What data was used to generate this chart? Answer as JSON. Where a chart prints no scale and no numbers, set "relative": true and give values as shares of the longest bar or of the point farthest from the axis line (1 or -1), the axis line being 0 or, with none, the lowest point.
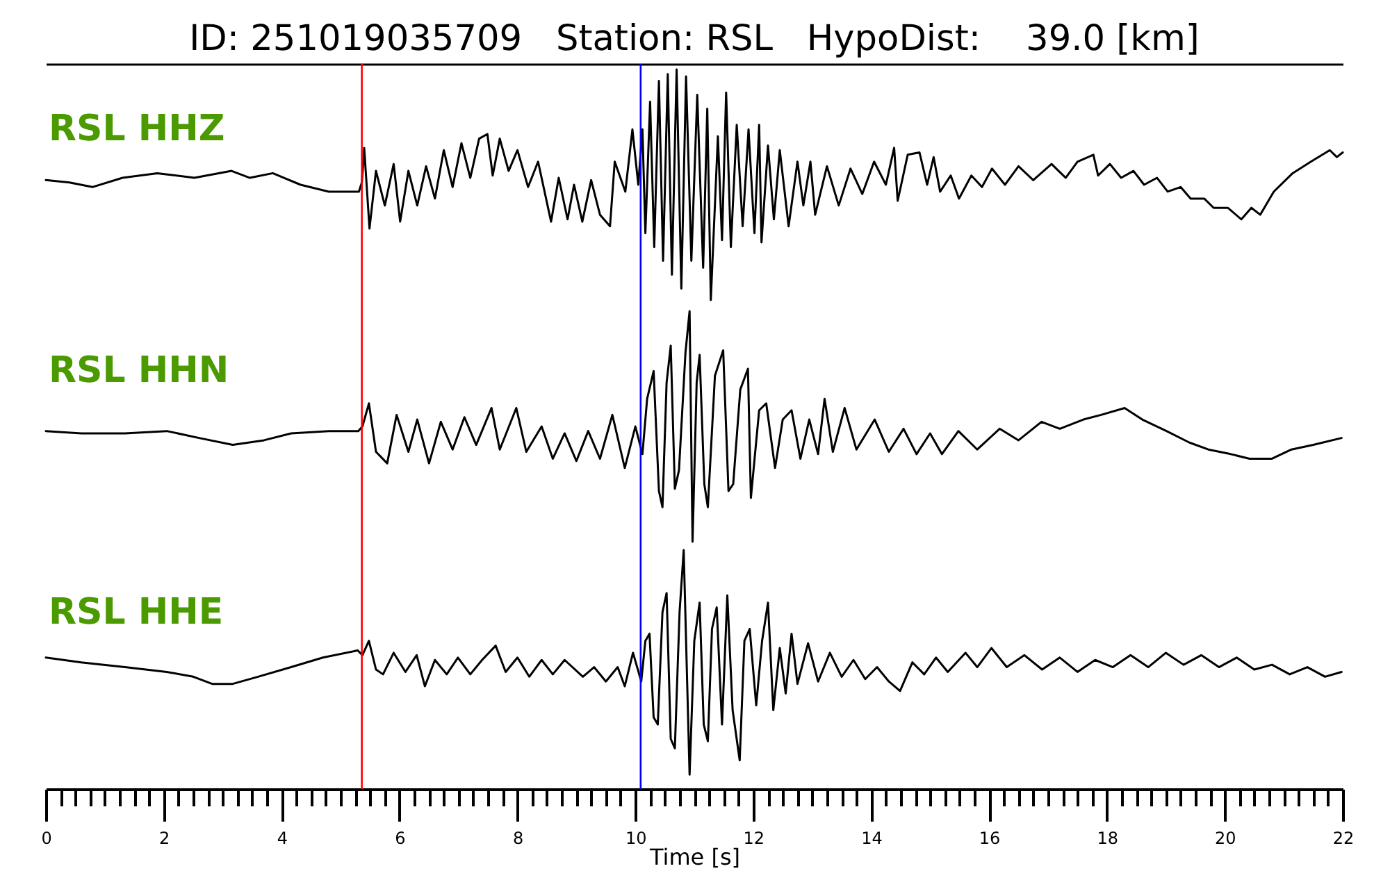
{
  "chart_data": [
    {
      "type": "line",
      "title": "ID: 251019035709   Station: RSL   HypoDist:    39.0 [km]",
      "relative": true,
      "xlim": [
        0,
        22
      ],
      "tick_labels": false,
      "ref_lines": [
        {
          "axis": "x",
          "value": 5.36,
          "color": "#ff0000"
        },
        {
          "axis": "x",
          "value": 10.09,
          "color": "#0000ff"
        }
      ],
      "series": [
        {
          "name": "RSL HHZ",
          "color": "#000000",
          "x": [
            0,
            0.4,
            0.79,
            1.3,
            1.89,
            2.52,
            3.15,
            3.46,
            3.85,
            4.32,
            4.8,
            5.31,
            5.36,
            5.4,
            5.49,
            5.6,
            5.75,
            5.9,
            6.01,
            6.15,
            6.3,
            6.45,
            6.6,
            6.75,
            6.9,
            7.05,
            7.2,
            7.35,
            7.49,
            7.58,
            7.7,
            7.85,
            8,
            8.18,
            8.35,
            8.57,
            8.7,
            8.85,
            8.96,
            9.1,
            9.25,
            9.4,
            9.57,
            9.65,
            9.83,
            9.95,
            10.05,
            10.12,
            10.17,
            10.25,
            10.32,
            10.4,
            10.47,
            10.55,
            10.62,
            10.7,
            10.78,
            10.86,
            10.95,
            11.05,
            11.15,
            11.22,
            11.28,
            11.4,
            11.47,
            11.54,
            11.62,
            11.72,
            11.82,
            11.92,
            12.02,
            12.1,
            12.14,
            12.25,
            12.35,
            12.45,
            12.6,
            12.75,
            12.85,
            12.97,
            13.05,
            13.25,
            13.45,
            13.65,
            13.85,
            14.05,
            14.25,
            14.39,
            14.45,
            14.62,
            14.82,
            14.95,
            15.06,
            15.17,
            15.35,
            15.49,
            15.7,
            15.88,
            16.05,
            16.27,
            16.5,
            16.75,
            17.06,
            17.3,
            17.5,
            17.77,
            17.85,
            18.05,
            18.24,
            18.45,
            18.63,
            18.85,
            19.03,
            19.25,
            19.42,
            19.65,
            19.81,
            20.05,
            20.28,
            20.45,
            20.6,
            20.83,
            21.15,
            21.46,
            21.78,
            21.9,
            22
          ],
          "values": [
            0.52,
            0.51,
            0.49,
            0.53,
            0.55,
            0.53,
            0.56,
            0.53,
            0.55,
            0.5,
            0.47,
            0.47,
            0.51,
            0.66,
            0.31,
            0.56,
            0.41,
            0.59,
            0.34,
            0.56,
            0.41,
            0.58,
            0.44,
            0.65,
            0.49,
            0.68,
            0.53,
            0.7,
            0.72,
            0.54,
            0.7,
            0.56,
            0.65,
            0.49,
            0.6,
            0.34,
            0.53,
            0.35,
            0.5,
            0.34,
            0.52,
            0.37,
            0.32,
            0.6,
            0.47,
            0.74,
            0.5,
            0.74,
            0.29,
            0.86,
            0.23,
            0.95,
            0.17,
            0.98,
            0.11,
            1,
            0.05,
            0.97,
            0.17,
            0.89,
            0.14,
            0.83,
            0,
            0.71,
            0.26,
            0.9,
            0.23,
            0.76,
            0.32,
            0.74,
            0.29,
            0.76,
            0.25,
            0.67,
            0.35,
            0.65,
            0.32,
            0.6,
            0.41,
            0.6,
            0.37,
            0.58,
            0.41,
            0.57,
            0.46,
            0.6,
            0.5,
            0.66,
            0.43,
            0.63,
            0.64,
            0.5,
            0.62,
            0.47,
            0.54,
            0.44,
            0.54,
            0.49,
            0.57,
            0.5,
            0.58,
            0.52,
            0.59,
            0.53,
            0.6,
            0.63,
            0.54,
            0.59,
            0.53,
            0.56,
            0.5,
            0.53,
            0.47,
            0.49,
            0.44,
            0.44,
            0.4,
            0.4,
            0.35,
            0.4,
            0.37,
            0.47,
            0.55,
            0.6,
            0.65,
            0.62,
            0.64
          ]
        }
      ]
    },
    {
      "type": "line",
      "relative": true,
      "xlim": [
        0,
        22
      ],
      "tick_labels": false,
      "ref_lines": [
        {
          "axis": "x",
          "value": 5.36,
          "color": "#ff0000"
        },
        {
          "axis": "x",
          "value": 10.09,
          "color": "#0000ff"
        }
      ],
      "series": [
        {
          "name": "RSL HHN",
          "color": "#000000",
          "x": [
            0,
            0.6,
            1.34,
            2.05,
            2.6,
            3.17,
            3.7,
            4.16,
            4.8,
            5.3,
            5.37,
            5.48,
            5.6,
            5.79,
            5.95,
            6.15,
            6.3,
            6.5,
            6.7,
            6.9,
            7.1,
            7.3,
            7.56,
            7.7,
            7.98,
            8.15,
            8.41,
            8.6,
            8.8,
            9,
            9.2,
            9.4,
            9.61,
            9.82,
            10,
            10.12,
            10.2,
            10.31,
            10.4,
            10.46,
            10.53,
            10.6,
            10.67,
            10.74,
            10.85,
            10.92,
            10.97,
            11.04,
            11.09,
            11.17,
            11.23,
            11.35,
            11.49,
            11.58,
            11.66,
            11.78,
            11.91,
            11.96,
            12.1,
            12.22,
            12.37,
            12.5,
            12.65,
            12.8,
            12.95,
            13.1,
            13.21,
            13.35,
            13.55,
            13.75,
            14.06,
            14.3,
            14.55,
            14.77,
            15,
            15.2,
            15.48,
            15.8,
            16.18,
            16.5,
            16.89,
            17.2,
            17.6,
            17.9,
            18.3,
            18.6,
            19.01,
            19.4,
            19.72,
            20.1,
            20.42,
            20.8,
            21.13,
            21.5,
            21.98
          ],
          "values": [
            0.48,
            0.47,
            0.47,
            0.48,
            0.45,
            0.42,
            0.44,
            0.47,
            0.48,
            0.48,
            0.5,
            0.6,
            0.39,
            0.34,
            0.55,
            0.39,
            0.53,
            0.34,
            0.52,
            0.4,
            0.54,
            0.42,
            0.58,
            0.4,
            0.58,
            0.39,
            0.5,
            0.36,
            0.47,
            0.35,
            0.48,
            0.36,
            0.55,
            0.32,
            0.5,
            0.38,
            0.62,
            0.74,
            0.22,
            0.15,
            0.69,
            0.85,
            0.23,
            0.31,
            0.82,
            1,
            0,
            0.69,
            0.81,
            0.25,
            0.15,
            0.72,
            0.83,
            0.22,
            0.25,
            0.66,
            0.75,
            0.19,
            0.57,
            0.6,
            0.32,
            0.53,
            0.57,
            0.36,
            0.53,
            0.38,
            0.62,
            0.39,
            0.58,
            0.4,
            0.53,
            0.39,
            0.49,
            0.38,
            0.47,
            0.38,
            0.48,
            0.4,
            0.49,
            0.44,
            0.52,
            0.49,
            0.53,
            0.55,
            0.58,
            0.53,
            0.48,
            0.43,
            0.4,
            0.38,
            0.36,
            0.36,
            0.4,
            0.42,
            0.45
          ]
        }
      ]
    },
    {
      "type": "line",
      "relative": true,
      "xlim": [
        0,
        22
      ],
      "tick_labels": "x",
      "xlabel": "Time [s]",
      "xticks": [
        0,
        {
          "value": 0.25,
          "label": null
        },
        {
          "value": 0.5,
          "label": null
        },
        {
          "value": 0.75,
          "label": null
        },
        {
          "value": 1,
          "label": null
        },
        {
          "value": 1.25,
          "label": null
        },
        {
          "value": 1.5,
          "label": null
        },
        {
          "value": 1.75,
          "label": null
        },
        2,
        {
          "value": 2.25,
          "label": null
        },
        {
          "value": 2.5,
          "label": null
        },
        {
          "value": 2.75,
          "label": null
        },
        {
          "value": 3,
          "label": null
        },
        {
          "value": 3.25,
          "label": null
        },
        {
          "value": 3.5,
          "label": null
        },
        {
          "value": 3.75,
          "label": null
        },
        4,
        {
          "value": 4.25,
          "label": null
        },
        {
          "value": 4.5,
          "label": null
        },
        {
          "value": 4.75,
          "label": null
        },
        {
          "value": 5,
          "label": null
        },
        {
          "value": 5.25,
          "label": null
        },
        {
          "value": 5.5,
          "label": null
        },
        {
          "value": 5.75,
          "label": null
        },
        6,
        {
          "value": 6.25,
          "label": null
        },
        {
          "value": 6.5,
          "label": null
        },
        {
          "value": 6.75,
          "label": null
        },
        {
          "value": 7,
          "label": null
        },
        {
          "value": 7.25,
          "label": null
        },
        {
          "value": 7.5,
          "label": null
        },
        {
          "value": 7.75,
          "label": null
        },
        8,
        {
          "value": 8.25,
          "label": null
        },
        {
          "value": 8.5,
          "label": null
        },
        {
          "value": 8.75,
          "label": null
        },
        {
          "value": 9,
          "label": null
        },
        {
          "value": 9.25,
          "label": null
        },
        {
          "value": 9.5,
          "label": null
        },
        {
          "value": 9.75,
          "label": null
        },
        10,
        {
          "value": 10.25,
          "label": null
        },
        {
          "value": 10.5,
          "label": null
        },
        {
          "value": 10.75,
          "label": null
        },
        {
          "value": 11,
          "label": null
        },
        {
          "value": 11.25,
          "label": null
        },
        {
          "value": 11.5,
          "label": null
        },
        {
          "value": 11.75,
          "label": null
        },
        12,
        {
          "value": 12.25,
          "label": null
        },
        {
          "value": 12.5,
          "label": null
        },
        {
          "value": 12.75,
          "label": null
        },
        {
          "value": 13,
          "label": null
        },
        {
          "value": 13.25,
          "label": null
        },
        {
          "value": 13.5,
          "label": null
        },
        {
          "value": 13.75,
          "label": null
        },
        14,
        {
          "value": 14.25,
          "label": null
        },
        {
          "value": 14.5,
          "label": null
        },
        {
          "value": 14.75,
          "label": null
        },
        {
          "value": 15,
          "label": null
        },
        {
          "value": 15.25,
          "label": null
        },
        {
          "value": 15.5,
          "label": null
        },
        {
          "value": 15.75,
          "label": null
        },
        16,
        {
          "value": 16.25,
          "label": null
        },
        {
          "value": 16.5,
          "label": null
        },
        {
          "value": 16.75,
          "label": null
        },
        {
          "value": 17,
          "label": null
        },
        {
          "value": 17.25,
          "label": null
        },
        {
          "value": 17.5,
          "label": null
        },
        {
          "value": 17.75,
          "label": null
        },
        18,
        {
          "value": 18.25,
          "label": null
        },
        {
          "value": 18.5,
          "label": null
        },
        {
          "value": 18.75,
          "label": null
        },
        {
          "value": 19,
          "label": null
        },
        {
          "value": 19.25,
          "label": null
        },
        {
          "value": 19.5,
          "label": null
        },
        {
          "value": 19.75,
          "label": null
        },
        20,
        {
          "value": 20.25,
          "label": null
        },
        {
          "value": 20.5,
          "label": null
        },
        {
          "value": 20.75,
          "label": null
        },
        {
          "value": 21,
          "label": null
        },
        {
          "value": 21.25,
          "label": null
        },
        {
          "value": 21.5,
          "label": null
        },
        {
          "value": 21.75,
          "label": null
        },
        22
      ],
      "ref_lines": [
        {
          "axis": "x",
          "value": 5.36,
          "color": "#ff0000"
        },
        {
          "axis": "x",
          "value": 10.09,
          "color": "#0000ff"
        }
      ],
      "series": [
        {
          "name": "RSL HHE",
          "color": "#000000",
          "x": [
            0,
            0.6,
            1.34,
            2.05,
            2.5,
            2.82,
            3.17,
            3.6,
            4.16,
            4.7,
            5.29,
            5.37,
            5.48,
            5.6,
            5.72,
            5.9,
            6.1,
            6.29,
            6.43,
            6.6,
            6.8,
            6.99,
            7.2,
            7.4,
            7.63,
            7.8,
            8,
            8.2,
            8.41,
            8.6,
            8.8,
            9.11,
            9.3,
            9.5,
            9.7,
            9.82,
            9.96,
            10.1,
            10.17,
            10.24,
            10.31,
            10.38,
            10.46,
            10.53,
            10.6,
            10.67,
            10.75,
            10.82,
            10.92,
            11,
            11.09,
            11.16,
            11.23,
            11.3,
            11.38,
            11.47,
            11.56,
            11.65,
            11.77,
            11.85,
            11.94,
            12.05,
            12.15,
            12.25,
            12.34,
            12.45,
            12.55,
            12.65,
            12.75,
            12.93,
            13.1,
            13.3,
            13.5,
            13.7,
            13.9,
            14.1,
            14.3,
            14.49,
            14.7,
            14.9,
            15.1,
            15.3,
            15.6,
            15.8,
            16.04,
            16.3,
            16.6,
            16.9,
            17.2,
            17.5,
            17.8,
            18.1,
            18.4,
            18.7,
            19,
            19.3,
            19.6,
            19.9,
            20.2,
            20.5,
            20.8,
            21.1,
            21.4,
            21.7,
            21.98
          ],
          "values": [
            0.55,
            0.53,
            0.51,
            0.49,
            0.47,
            0.44,
            0.44,
            0.47,
            0.51,
            0.55,
            0.58,
            0.56,
            0.62,
            0.5,
            0.48,
            0.57,
            0.49,
            0.56,
            0.43,
            0.54,
            0.48,
            0.55,
            0.48,
            0.54,
            0.6,
            0.49,
            0.55,
            0.47,
            0.54,
            0.48,
            0.54,
            0.47,
            0.51,
            0.45,
            0.51,
            0.43,
            0.57,
            0.45,
            0.62,
            0.65,
            0.3,
            0.27,
            0.74,
            0.82,
            0.21,
            0.17,
            0.74,
            1,
            0.06,
            0.62,
            0.78,
            0.27,
            0.2,
            0.67,
            0.76,
            0.27,
            0.81,
            0.33,
            0.12,
            0.62,
            0.67,
            0.35,
            0.62,
            0.78,
            0.33,
            0.59,
            0.4,
            0.65,
            0.44,
            0.61,
            0.45,
            0.57,
            0.47,
            0.54,
            0.46,
            0.51,
            0.45,
            0.41,
            0.53,
            0.48,
            0.55,
            0.49,
            0.57,
            0.51,
            0.59,
            0.51,
            0.56,
            0.5,
            0.55,
            0.49,
            0.54,
            0.51,
            0.56,
            0.51,
            0.57,
            0.52,
            0.56,
            0.51,
            0.55,
            0.5,
            0.52,
            0.48,
            0.51,
            0.47,
            0.49
          ]
        }
      ]
    }
  ]
}
